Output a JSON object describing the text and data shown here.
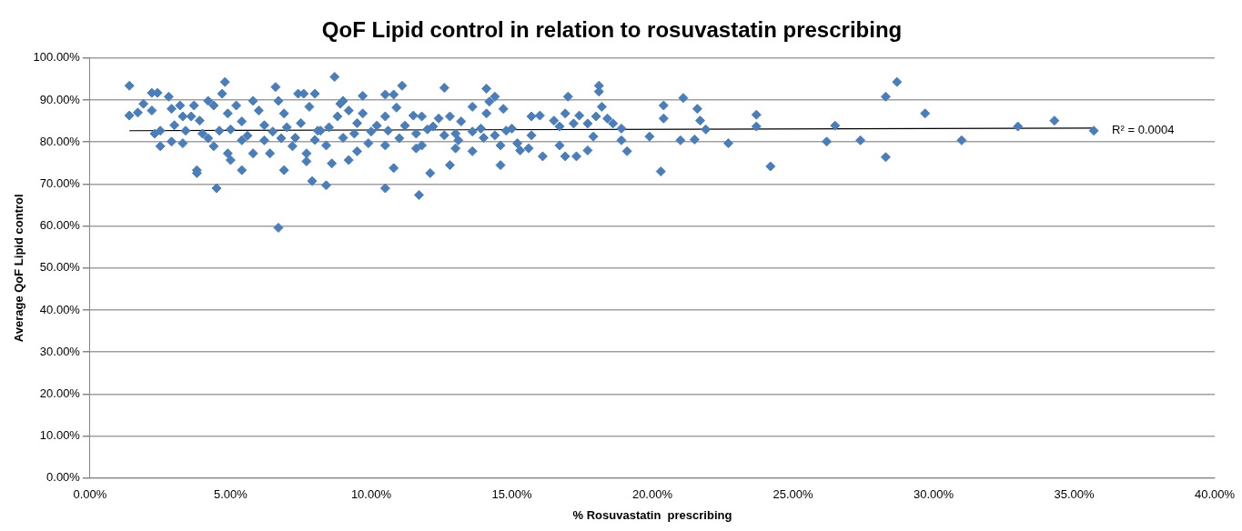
{
  "chart_data": {
    "type": "scatter",
    "title": "QoF Lipid control in relation to rosuvastatin prescribing",
    "xlabel": "% Rosuvastatin  prescribing",
    "ylabel": "Average QoF Lipid control",
    "xlim": [
      0,
      40
    ],
    "xticks": [
      {
        "value": 0,
        "label": "0.00%"
      },
      {
        "value": 5,
        "label": "5.00%"
      },
      {
        "value": 10,
        "label": "10.00%"
      },
      {
        "value": 15,
        "label": "15.00%"
      },
      {
        "value": 20,
        "label": "20.00%"
      },
      {
        "value": 25,
        "label": "25.00%"
      },
      {
        "value": 30,
        "label": "30.00%"
      },
      {
        "value": 35,
        "label": "35.00%"
      },
      {
        "value": 40,
        "label": "40.00%"
      }
    ],
    "ylim": [
      0,
      100
    ],
    "yticks": [
      {
        "value": 0,
        "label": "0.00%"
      },
      {
        "value": 10,
        "label": "10.00%"
      },
      {
        "value": 20,
        "label": "20.00%"
      },
      {
        "value": 30,
        "label": "30.00%"
      },
      {
        "value": 40,
        "label": "40.00%"
      },
      {
        "value": 50,
        "label": "50.00%"
      },
      {
        "value": 60,
        "label": "60.00%"
      },
      {
        "value": 70,
        "label": "70.00%"
      },
      {
        "value": 80,
        "label": "80.00%"
      },
      {
        "value": 90,
        "label": "90.00%"
      },
      {
        "value": 100,
        "label": "100.00%"
      }
    ],
    "grid": "y",
    "legend": false,
    "marker": "diamond",
    "series": [
      {
        "color": "#4a7ebb",
        "x": [
          35.7,
          34.3,
          33.0,
          31.0,
          29.7,
          28.7,
          28.3,
          28.3,
          27.4,
          26.5,
          26.2,
          24.2,
          23.7,
          23.7,
          22.7,
          21.9,
          21.7,
          21.6,
          21.5,
          21.1,
          21.0,
          20.4,
          20.4,
          20.3,
          19.9,
          11.1,
          12.6,
          10.5,
          10.8,
          10.9,
          10.5,
          11.5,
          11.8,
          10.5,
          11.7,
          10.8,
          12.1,
          12.8,
          14.6,
          13.6,
          14.1,
          14.4,
          14.2,
          13.6,
          14.7,
          14.1,
          12.8,
          13.2,
          12.4,
          13.9,
          15.0,
          15.2,
          15.6,
          15.7,
          14.4,
          14.6,
          16.0,
          15.7,
          16.5,
          16.7,
          17.0,
          16.9,
          17.4,
          17.2,
          17.7,
          17.9,
          18.1,
          18.1,
          18.2,
          18.0,
          18.4,
          18.6,
          18.9,
          18.9,
          19.1,
          16.7,
          16.9,
          17.3,
          17.7,
          16.1,
          13.6,
          13.1,
          13.0,
          12.6,
          11.6,
          11.6,
          11.8,
          11.0,
          10.5,
          10.6,
          10.2,
          11.2,
          12.2,
          15.3,
          14.8,
          1.4,
          1.4,
          1.7,
          1.9,
          2.2,
          2.4,
          2.2,
          2.3,
          2.5,
          2.5,
          2.8,
          2.9,
          2.9,
          3.2,
          3.3,
          3.3,
          3.7,
          3.6,
          3.4,
          3.8,
          3.8,
          3.9,
          4.2,
          4.4,
          4.2,
          4.4,
          4.5,
          4.7,
          4.8,
          4.9,
          4.6,
          4.9,
          5.0,
          5.2,
          5.4,
          5.4,
          5.4,
          5.8,
          6.0,
          5.8,
          6.2,
          6.4,
          6.6,
          6.7,
          6.9,
          6.9,
          6.8,
          7.2,
          7.4,
          7.6,
          7.8,
          7.7,
          7.7,
          7.9,
          8.0,
          8.1,
          8.4,
          8.6,
          8.7,
          8.9,
          9.0,
          9.2,
          9.5,
          9.7,
          9.7,
          9.9,
          8.4,
          8.2,
          8.8,
          9.2,
          9.4,
          6.2,
          6.5,
          7.0,
          7.3,
          7.5,
          8.0,
          8.5,
          9.0,
          9.5,
          10.0,
          5.0,
          5.6,
          4.0,
          3.0,
          12.0,
          13.0,
          14.0,
          6.7
        ],
        "values": [
          82.7,
          85.1,
          83.7,
          80.4,
          86.8,
          94.3,
          90.8,
          76.4,
          80.4,
          83.9,
          80.1,
          74.2,
          86.5,
          83.7,
          79.7,
          83.0,
          85.1,
          87.9,
          80.6,
          90.5,
          80.4,
          85.6,
          88.7,
          73.0,
          81.3,
          93.4,
          92.9,
          91.3,
          91.3,
          88.2,
          86.1,
          86.3,
          86.1,
          69.0,
          67.4,
          73.8,
          72.6,
          74.5,
          74.5,
          77.8,
          92.7,
          90.8,
          89.6,
          88.4,
          87.9,
          86.8,
          86.1,
          84.9,
          85.6,
          83.2,
          83.2,
          79.7,
          78.5,
          81.6,
          81.6,
          79.2,
          86.3,
          86.1,
          85.1,
          83.7,
          90.8,
          86.8,
          86.3,
          84.4,
          84.4,
          81.3,
          93.4,
          92.0,
          88.4,
          86.1,
          85.6,
          84.4,
          83.2,
          80.4,
          77.8,
          79.2,
          76.6,
          76.6,
          78.0,
          76.6,
          82.5,
          80.4,
          78.5,
          81.6,
          82.0,
          78.5,
          79.2,
          80.9,
          79.2,
          82.7,
          83.9,
          83.9,
          83.7,
          78.0,
          82.7,
          93.4,
          86.3,
          87.0,
          89.1,
          91.7,
          91.7,
          87.5,
          82.0,
          82.7,
          79.0,
          90.8,
          87.9,
          80.1,
          88.7,
          86.1,
          79.7,
          88.7,
          86.1,
          82.7,
          72.6,
          73.3,
          85.1,
          89.8,
          88.7,
          80.9,
          79.0,
          69.0,
          91.5,
          94.3,
          86.8,
          82.7,
          77.3,
          75.7,
          88.7,
          84.9,
          73.3,
          80.4,
          89.8,
          87.5,
          77.3,
          80.4,
          77.3,
          93.1,
          89.8,
          86.8,
          73.3,
          80.9,
          79.0,
          91.5,
          91.5,
          88.4,
          77.3,
          75.4,
          70.7,
          91.5,
          82.7,
          69.7,
          74.9,
          95.5,
          89.1,
          89.8,
          75.7,
          77.8,
          91.0,
          86.8,
          79.7,
          79.2,
          82.7,
          86.1,
          87.5,
          82.0,
          84.0,
          82.5,
          83.5,
          81.0,
          84.5,
          80.5,
          83.5,
          81.0,
          84.5,
          82.5,
          83.0,
          81.5,
          82.0,
          84.0,
          83.0,
          82.0,
          81.0,
          59.6
        ]
      },
      {
        "type": "line",
        "color": "#000000",
        "marker": "none",
        "x": [
          1.4,
          35.7
        ],
        "values": [
          82.7,
          83.3
        ]
      }
    ],
    "annotations": [
      {
        "text": "R² = 0.0004",
        "x": 35.7,
        "y": 83.3
      }
    ]
  }
}
